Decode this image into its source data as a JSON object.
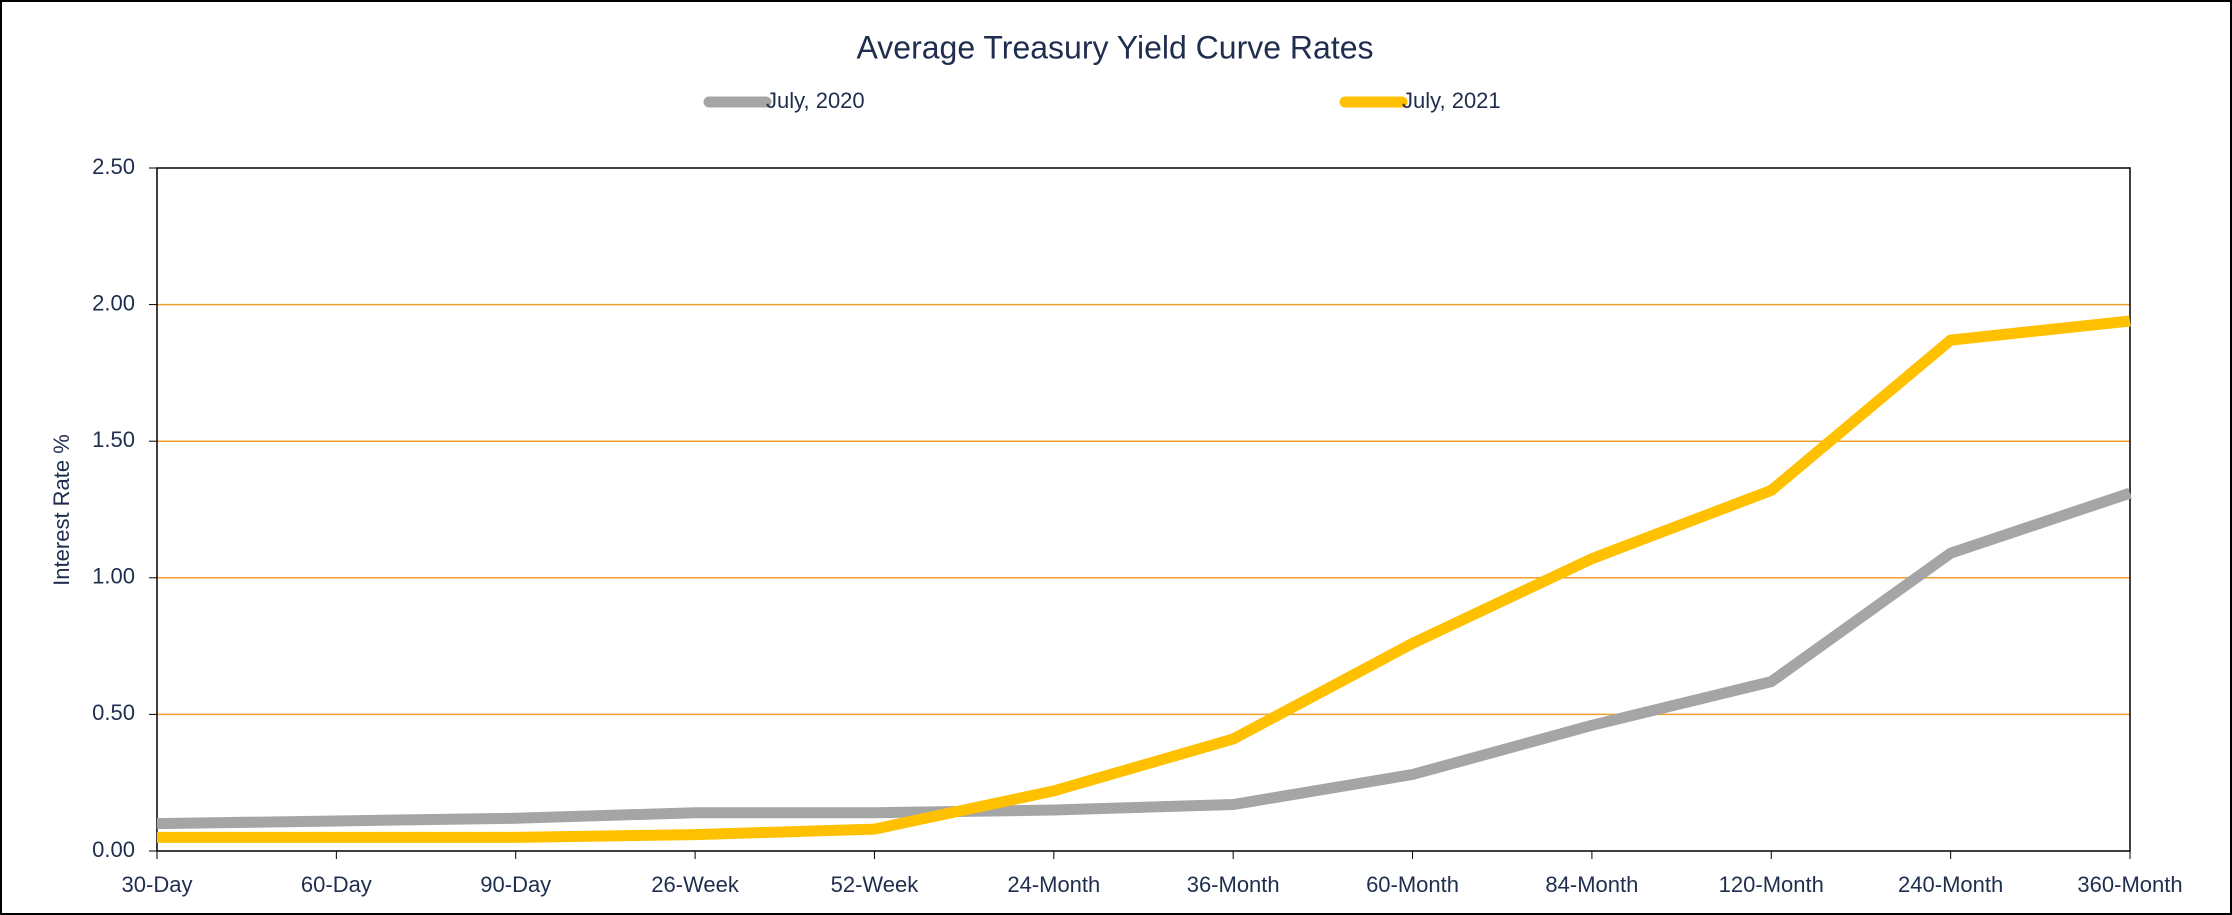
{
  "chart_data": {
    "type": "line",
    "title": "Average  Treasury Yield Curve Rates",
    "y_label": "Interest Rate %",
    "categories": [
      "30-Day",
      "60-Day",
      "90-Day",
      "26-Week",
      "52-Week",
      "24-Month",
      "36-Month",
      "60-Month",
      "84-Month",
      "120-Month",
      "240-Month",
      "360-Month"
    ],
    "series": [
      {
        "name": "July, 2020",
        "color": "#a5a5a5",
        "values": [
          0.1,
          0.11,
          0.12,
          0.14,
          0.14,
          0.15,
          0.17,
          0.28,
          0.46,
          0.62,
          1.09,
          1.31
        ]
      },
      {
        "name": "July, 2021",
        "color": "#ffc000",
        "values": [
          0.05,
          0.05,
          0.05,
          0.06,
          0.08,
          0.22,
          0.41,
          0.76,
          1.07,
          1.32,
          1.87,
          1.94
        ]
      }
    ],
    "ylim": [
      0,
      2.5
    ],
    "yticks": [
      {
        "value": 0,
        "label": "0.00"
      },
      {
        "value": 0.5,
        "label": "0.50"
      },
      {
        "value": 1,
        "label": "1.00"
      },
      {
        "value": 1.5,
        "label": "1.50"
      },
      {
        "value": 2,
        "label": "2.00"
      },
      {
        "value": 2.5,
        "label": "2.50"
      }
    ],
    "grid": true,
    "grid_color": "#f0a030",
    "legend": "top"
  }
}
